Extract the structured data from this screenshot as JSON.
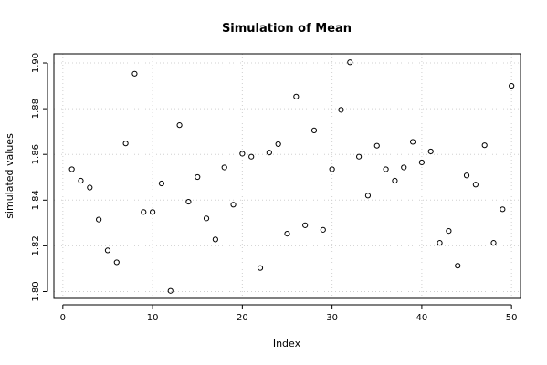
{
  "chart_data": {
    "type": "scatter",
    "title": "Simulation of Mean",
    "xlabel": "Index",
    "ylabel": "simulated values",
    "xlim": [
      -1,
      51
    ],
    "ylim": [
      1.797,
      1.904
    ],
    "x_ticks": [
      0,
      10,
      20,
      30,
      40,
      50
    ],
    "x_tick_labels": [
      "0",
      "10",
      "20",
      "30",
      "40",
      "50"
    ],
    "y_ticks": [
      1.8,
      1.82,
      1.84,
      1.86,
      1.88,
      1.9
    ],
    "y_tick_labels": [
      "1.80",
      "1.82",
      "1.84",
      "1.86",
      "1.88",
      "1.90"
    ],
    "grid": true,
    "x": [
      1,
      2,
      3,
      4,
      5,
      6,
      7,
      8,
      9,
      10,
      11,
      12,
      13,
      14,
      15,
      16,
      17,
      18,
      19,
      20,
      21,
      22,
      23,
      24,
      25,
      26,
      27,
      28,
      29,
      30,
      31,
      32,
      33,
      34,
      35,
      36,
      37,
      38,
      39,
      40,
      41,
      42,
      43,
      44,
      45,
      46,
      47,
      48,
      49,
      50
    ],
    "y": [
      1.8535,
      1.8485,
      1.8455,
      1.8315,
      1.818,
      1.8128,
      1.8648,
      1.8953,
      1.8348,
      1.8348,
      1.8473,
      1.8003,
      1.8728,
      1.8393,
      1.8501,
      1.832,
      1.8228,
      1.8543,
      1.838,
      1.8603,
      1.859,
      1.8103,
      1.8608,
      1.8645,
      1.8253,
      1.8853,
      1.829,
      1.8705,
      1.827,
      1.8535,
      1.8795,
      1.9003,
      1.859,
      1.842,
      1.8638,
      1.8535,
      1.8485,
      1.8543,
      1.8655,
      1.8565,
      1.8613,
      1.8213,
      1.8265,
      1.8113,
      1.8508,
      1.8468,
      1.864,
      1.8213,
      1.836,
      1.89
    ]
  }
}
